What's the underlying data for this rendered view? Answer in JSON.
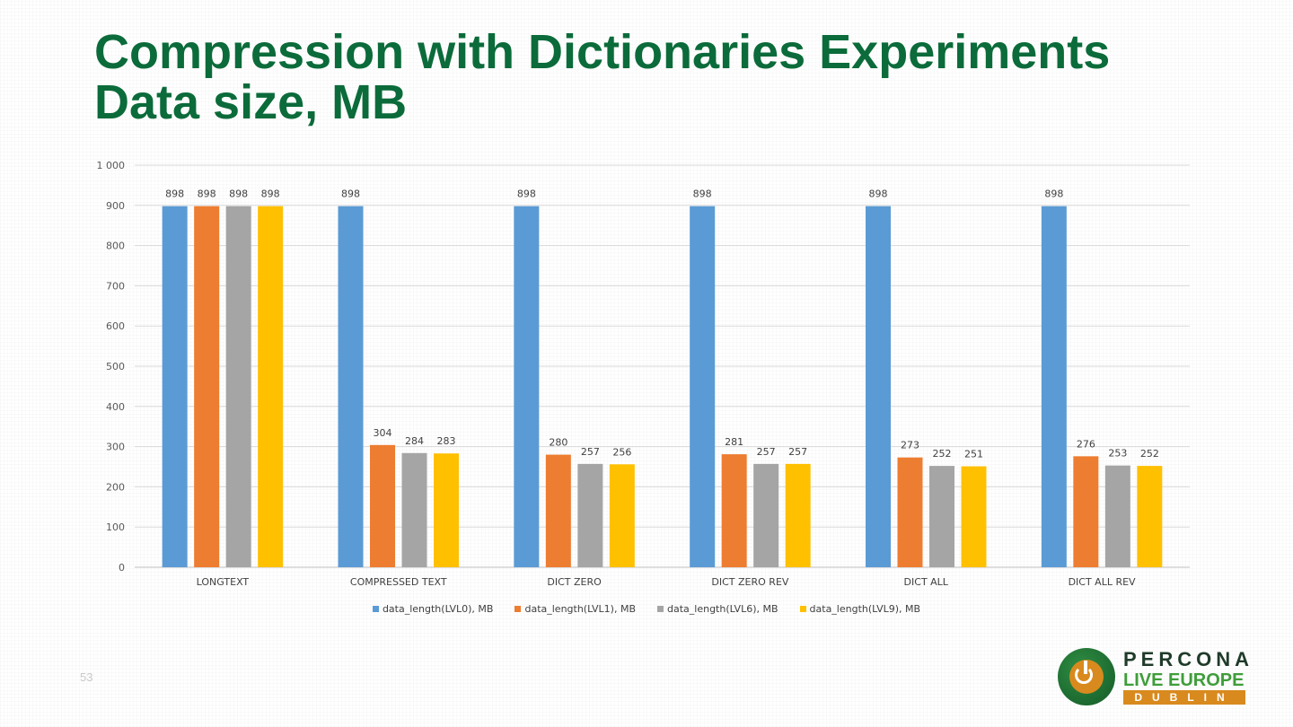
{
  "slide": {
    "title_line1": "Compression with Dictionaries Experiments",
    "title_line2": "Data size, MB",
    "page_number": "53"
  },
  "logo": {
    "word1": "PERCONA",
    "word2": "LIVE EUROPE",
    "word3": "DUBLIN"
  },
  "chart_data": {
    "type": "bar",
    "categories": [
      "LONGTEXT",
      "COMPRESSED TEXT",
      "DICT ZERO",
      "DICT ZERO REV",
      "DICT ALL",
      "DICT ALL REV"
    ],
    "series": [
      {
        "name": "data_length(LVL0), MB",
        "color": "#5b9bd5",
        "values": [
          898,
          898,
          898,
          898,
          898,
          898
        ]
      },
      {
        "name": "data_length(LVL1), MB",
        "color": "#ed7d31",
        "values": [
          898,
          304,
          280,
          281,
          273,
          276
        ]
      },
      {
        "name": "data_length(LVL6), MB",
        "color": "#a5a5a5",
        "values": [
          898,
          284,
          257,
          257,
          252,
          253
        ]
      },
      {
        "name": "data_length(LVL9), MB",
        "color": "#ffc000",
        "values": [
          898,
          283,
          256,
          257,
          251,
          252
        ]
      }
    ],
    "data_labels": [
      [
        "898",
        "898",
        "898",
        "898"
      ],
      [
        "898",
        "304",
        "284",
        "283"
      ],
      [
        "898",
        "280",
        "257",
        "256"
      ],
      [
        "898",
        "281",
        "257",
        "257"
      ],
      [
        "898",
        "273",
        "252",
        "251"
      ],
      [
        "898",
        "276",
        "253",
        "252"
      ]
    ],
    "y_ticks": [
      "0",
      "100",
      "200",
      "300",
      "400",
      "500",
      "600",
      "700",
      "800",
      "900",
      "1 000"
    ],
    "ylim": [
      0,
      1000
    ],
    "grid": true,
    "legend": "bottom-center",
    "xlabel": "",
    "ylabel": ""
  }
}
